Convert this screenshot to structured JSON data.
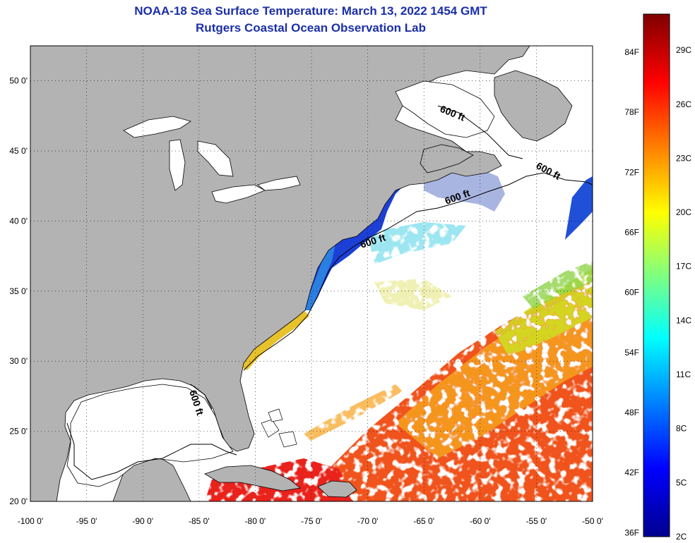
{
  "title_line1": "NOAA-18 Sea Surface Temperature:  March 13, 2022 1454 GMT",
  "title_line2": "Rutgers Coastal Ocean Observation Lab",
  "map": {
    "lon_range": [
      -100,
      -50
    ],
    "lat_range": [
      20,
      52.5
    ],
    "lon_ticks": [
      "-100 0'",
      "-95 0'",
      "-90 0'",
      "-85 0'",
      "-80 0'",
      "-75 0'",
      "-70 0'",
      "-65 0'",
      "-60 0'",
      "-55 0'",
      "-50 0'"
    ],
    "lat_ticks": [
      "20 0'",
      "25 0'",
      "30 0'",
      "35 0'",
      "40 0'",
      "45 0'",
      "50 0'"
    ],
    "depth_labels": [
      "600 ft",
      "600 ft",
      "600 ft",
      "600 ft",
      "600 ft"
    ],
    "colors": {
      "land": "#b3b3b3",
      "no_data": "#ffffff"
    }
  },
  "colorbar": {
    "fahrenheit_labels": [
      "84F",
      "78F",
      "72F",
      "66F",
      "60F",
      "54F",
      "48F",
      "42F",
      "36F"
    ],
    "celsius_labels": [
      "29C",
      "26C",
      "23C",
      "20C",
      "17C",
      "14C",
      "11C",
      "8C",
      "5C",
      "2C"
    ],
    "range_c": [
      2,
      31
    ]
  }
}
